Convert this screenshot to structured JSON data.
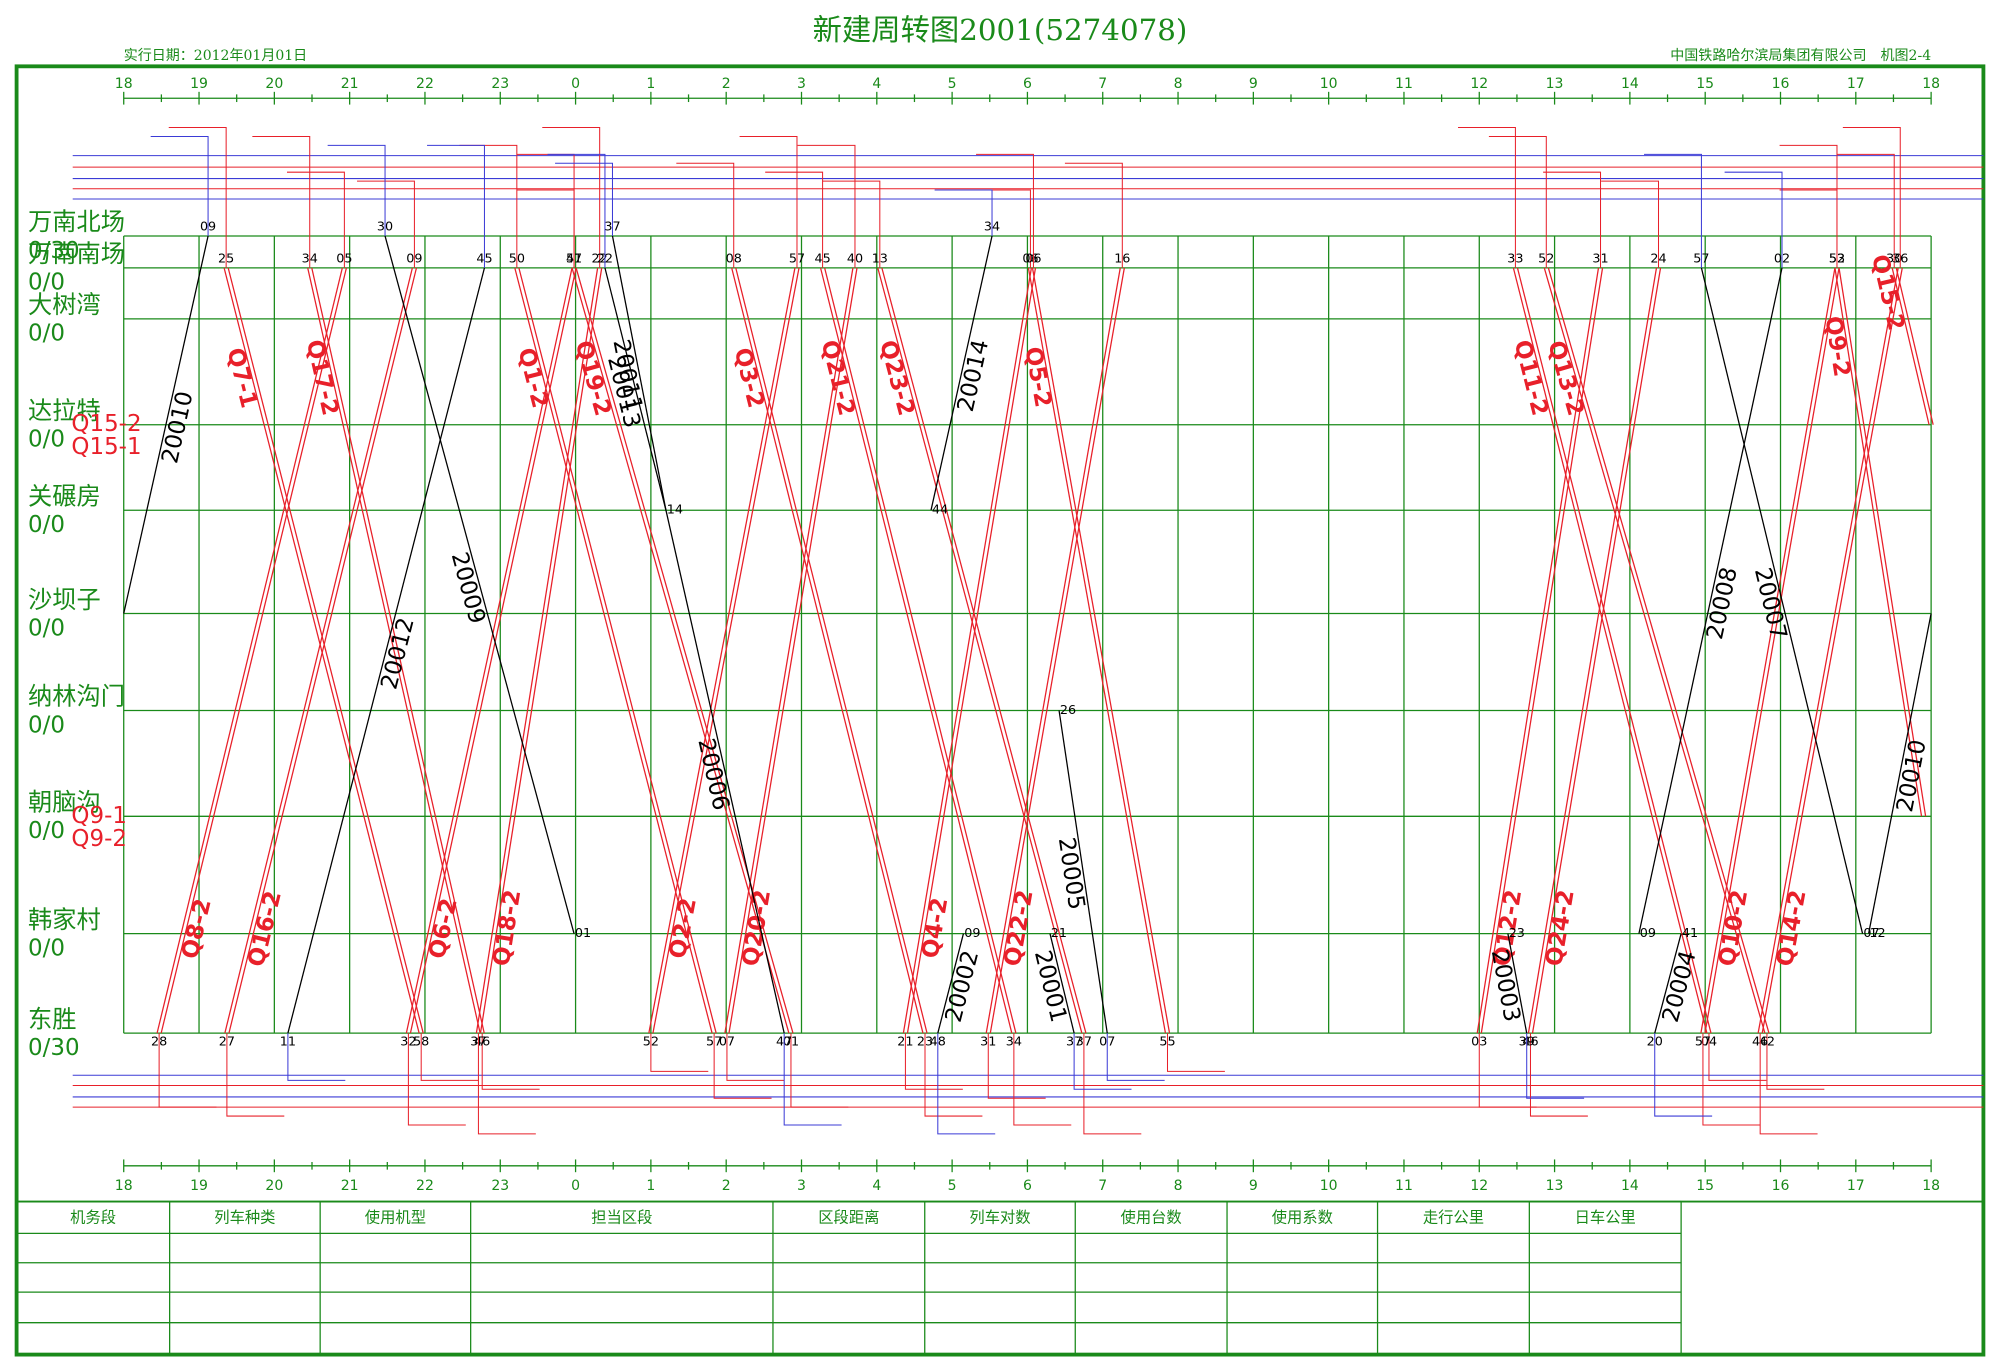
{
  "header": {
    "title": "新建周转图2001(5274078)",
    "date": "实行日期：2012年01月01日",
    "org": "中国铁路哈尔滨局集团有限公司　机图2-4"
  },
  "axis": {
    "ticks": [
      18,
      19,
      20,
      21,
      22,
      23,
      {
        "value": 24,
        "label": "0"
      },
      {
        "value": 25,
        "label": "1"
      },
      {
        "value": 26,
        "label": "2"
      },
      {
        "value": 27,
        "label": "3"
      },
      {
        "value": 28,
        "label": "4"
      },
      {
        "value": 29,
        "label": "5"
      },
      {
        "value": 30,
        "label": "6"
      },
      {
        "value": 31,
        "label": "7"
      },
      {
        "value": 32,
        "label": "8"
      },
      {
        "value": 33,
        "label": "9"
      },
      {
        "value": 34,
        "label": "10"
      },
      {
        "value": 35,
        "label": "11"
      },
      {
        "value": 36,
        "label": "12"
      },
      {
        "value": 37,
        "label": "13"
      },
      {
        "value": 38,
        "label": "14"
      },
      {
        "value": 39,
        "label": "15"
      },
      {
        "value": 40,
        "label": "16"
      },
      {
        "value": 41,
        "label": "17"
      },
      {
        "value": 42,
        "label": "18"
      }
    ]
  },
  "stations": [
    {
      "name": "万南北场",
      "count": "0/30"
    },
    {
      "name": "万南南场",
      "count": "0/0"
    },
    {
      "name": "大树湾",
      "count": "0/0"
    },
    {
      "name": "达拉特",
      "count": "0/0",
      "marks": [
        "Q15-2",
        "Q15-1"
      ]
    },
    {
      "name": "关碾房",
      "count": "0/0"
    },
    {
      "name": "沙坝子",
      "count": "0/0"
    },
    {
      "name": "纳林沟门",
      "count": "0/0"
    },
    {
      "name": "朝脑沟",
      "count": "0/0",
      "marks": [
        "Q9-1",
        "Q9-2"
      ]
    },
    {
      "name": "韩家村",
      "count": "0/0"
    },
    {
      "name": "东胜",
      "count": "0/30"
    }
  ],
  "trains": [
    {
      "label": "Q7-1",
      "color": "#e8202a",
      "double": true,
      "from": 1,
      "to": 9,
      "times": [
        19.36,
        21.95
      ],
      "dep_label": "25",
      "arr_label": "58"
    },
    {
      "label": "Q17-2",
      "color": "#e8202a",
      "double": true,
      "from": 1,
      "to": 9,
      "times": [
        20.47,
        22.76
      ],
      "dep_label": "34",
      "arr_label": "46"
    },
    {
      "label": "Q1-2",
      "color": "#e8202a",
      "double": true,
      "from": 1,
      "to": 9,
      "times": [
        23.22,
        25.84
      ],
      "dep_label": "50",
      "arr_label": "57"
    },
    {
      "label": "Q19-2",
      "color": "#e8202a",
      "double": true,
      "from": 1,
      "to": 9,
      "times": [
        23.98,
        26.86
      ],
      "dep_label": "51",
      "arr_label": "01"
    },
    {
      "label": "Q3-2",
      "color": "#e8202a",
      "double": true,
      "from": 1,
      "to": 9,
      "times": [
        26.1,
        28.64
      ],
      "dep_label": "08",
      "arr_label": "23"
    },
    {
      "label": "Q21-2",
      "color": "#e8202a",
      "double": true,
      "from": 1,
      "to": 9,
      "times": [
        27.28,
        29.82
      ],
      "dep_label": "45",
      "arr_label": "34"
    },
    {
      "label": "Q23-2",
      "color": "#e8202a",
      "double": true,
      "from": 1,
      "to": 9,
      "times": [
        28.04,
        30.75
      ],
      "dep_label": "13",
      "arr_label": "37"
    },
    {
      "label": "Q5-2",
      "color": "#e8202a",
      "double": true,
      "from": 1,
      "to": 9,
      "times": [
        30.04,
        31.86
      ],
      "dep_label": "06",
      "arr_label": "55"
    },
    {
      "label": "Q11-2",
      "color": "#e8202a",
      "double": true,
      "from": 1,
      "to": 9,
      "times": [
        36.48,
        39.05
      ],
      "dep_label": "33",
      "arr_label": "04"
    },
    {
      "label": "Q13-2",
      "color": "#e8202a",
      "double": true,
      "from": 1,
      "to": 9,
      "times": [
        36.89,
        39.82
      ],
      "dep_label": "52",
      "arr_label": "42"
    },
    {
      "label": "Q9-2",
      "color": "#e8202a",
      "double": true,
      "from": 1,
      "to": 7,
      "times": [
        40.75,
        41.9
      ],
      "dep_label": "53"
    },
    {
      "label": "Q15-2",
      "color": "#e8202a",
      "double": true,
      "from": 1,
      "to": 3,
      "times": [
        41.51,
        42.0
      ],
      "dep_label": "30"
    },
    {
      "label": "Q8-2",
      "color": "#e8202a",
      "double": true,
      "from": 9,
      "to": 1,
      "times": [
        18.47,
        20.93
      ],
      "dep_label": "28",
      "arr_label": "05"
    },
    {
      "label": "Q16-2",
      "color": "#e8202a",
      "double": true,
      "from": 9,
      "to": 1,
      "times": [
        19.37,
        21.86
      ],
      "dep_label": "27",
      "arr_label": "09"
    },
    {
      "label": "Q6-2",
      "color": "#e8202a",
      "double": true,
      "from": 9,
      "to": 1,
      "times": [
        21.78,
        23.98
      ],
      "dep_label": "32",
      "arr_label": "47"
    },
    {
      "label": "Q18-2",
      "color": "#e8202a",
      "double": true,
      "from": 9,
      "to": 1,
      "times": [
        22.71,
        24.32
      ],
      "dep_label": "37",
      "arr_label": "22"
    },
    {
      "label": "Q2-2",
      "color": "#e8202a",
      "double": true,
      "from": 9,
      "to": 1,
      "times": [
        25.0,
        26.94
      ],
      "dep_label": "52",
      "arr_label": "57"
    },
    {
      "label": "Q20-2",
      "color": "#e8202a",
      "double": true,
      "from": 9,
      "to": 1,
      "times": [
        26.01,
        27.71
      ],
      "dep_label": "07",
      "arr_label": "40"
    },
    {
      "label": "Q4-2",
      "color": "#e8202a",
      "double": true,
      "from": 9,
      "to": 1,
      "times": [
        28.38,
        30.08
      ],
      "dep_label": "21",
      "arr_label": "06"
    },
    {
      "label": "Q22-2",
      "color": "#e8202a",
      "double": true,
      "from": 9,
      "to": 1,
      "times": [
        29.48,
        31.26
      ],
      "dep_label": "31",
      "arr_label": "16"
    },
    {
      "label": "Q12-2",
      "color": "#e8202a",
      "double": true,
      "from": 9,
      "to": 1,
      "times": [
        36.0,
        37.61
      ],
      "dep_label": "03",
      "arr_label": "31"
    },
    {
      "label": "Q24-2",
      "color": "#e8202a",
      "double": true,
      "from": 9,
      "to": 1,
      "times": [
        36.68,
        38.38
      ],
      "dep_label": "46",
      "arr_label": "24"
    },
    {
      "label": "Q10-2",
      "color": "#e8202a",
      "double": true,
      "from": 9,
      "to": 1,
      "times": [
        38.97,
        40.75
      ],
      "dep_label": "57",
      "arr_label": "52"
    },
    {
      "label": "Q14-2",
      "color": "#e8202a",
      "double": true,
      "from": 9,
      "to": 1,
      "times": [
        39.73,
        41.59
      ],
      "dep_label": "46",
      "arr_label": "36"
    },
    {
      "label": "20010",
      "color": "#000000",
      "double": false,
      "from": 5,
      "to": 0,
      "times": [
        18.0,
        19.12
      ],
      "arr_label": "09"
    },
    {
      "label": "20012",
      "color": "#000000",
      "double": false,
      "from": 9,
      "to": 1,
      "times": [
        20.18,
        22.79
      ],
      "dep_label": "11",
      "arr_label": "45"
    },
    {
      "label": "20009",
      "color": "#000000",
      "double": false,
      "from": 0,
      "to": 8,
      "times": [
        21.47,
        23.98
      ],
      "dep_label": "30",
      "arr_label": "01"
    },
    {
      "label": "20013",
      "color": "#000000",
      "double": false,
      "from": 1,
      "to": 4,
      "times": [
        24.39,
        25.2
      ],
      "dep_label": "22"
    },
    {
      "label": "20011",
      "color": "#000000",
      "double": false,
      "from": 0,
      "to": 4,
      "times": [
        24.49,
        25.2
      ],
      "dep_label": "37",
      "arr_label": "14"
    },
    {
      "label": "20006",
      "color": "#000000",
      "double": false,
      "from": 4,
      "to": 9,
      "times": [
        25.2,
        26.77
      ],
      "arr_label": "47"
    },
    {
      "label": "20014",
      "color": "#000000",
      "double": false,
      "from": 4,
      "to": 0,
      "times": [
        28.72,
        29.53
      ],
      "dep_label": "44",
      "arr_label": "34"
    },
    {
      "label": "20002",
      "color": "#000000",
      "double": false,
      "from": 9,
      "to": 8,
      "times": [
        28.81,
        29.15
      ],
      "dep_label": "48",
      "arr_label": "09"
    },
    {
      "label": "20005",
      "color": "#000000",
      "double": false,
      "from": 6,
      "to": 9,
      "times": [
        30.42,
        31.06
      ],
      "dep_label": "26",
      "arr_label": "07"
    },
    {
      "label": "20001",
      "color": "#000000",
      "double": false,
      "from": 8,
      "to": 9,
      "times": [
        30.3,
        30.62
      ],
      "dep_label": "21",
      "arr_label": "37"
    },
    {
      "label": "20003",
      "color": "#000000",
      "double": false,
      "from": 8,
      "to": 9,
      "times": [
        36.38,
        36.63
      ],
      "dep_label": "23",
      "arr_label": "39"
    },
    {
      "label": "20007",
      "color": "#000000",
      "double": false,
      "from": 1,
      "to": 8,
      "times": [
        38.95,
        41.09
      ],
      "dep_label": "57",
      "arr_label": "07"
    },
    {
      "label": "20008",
      "color": "#000000",
      "double": false,
      "from": 8,
      "to": 1,
      "times": [
        38.12,
        40.02
      ],
      "dep_label": "09",
      "arr_label": "02"
    },
    {
      "label": "20004",
      "color": "#000000",
      "double": false,
      "from": 9,
      "to": 8,
      "times": [
        38.33,
        38.68
      ],
      "dep_label": "20",
      "arr_label": "41"
    },
    {
      "label": "20010",
      "color": "#000000",
      "double": false,
      "from": 8,
      "to": 5,
      "times": [
        41.17,
        42.0
      ],
      "dep_label": "12"
    }
  ],
  "table": {
    "headers": [
      "机务段",
      "列车种类",
      "使用机型",
      "担当区段",
      "区段距离",
      "列车对数",
      "使用台数",
      "使用系数",
      "走行公里",
      "日车公里"
    ]
  }
}
